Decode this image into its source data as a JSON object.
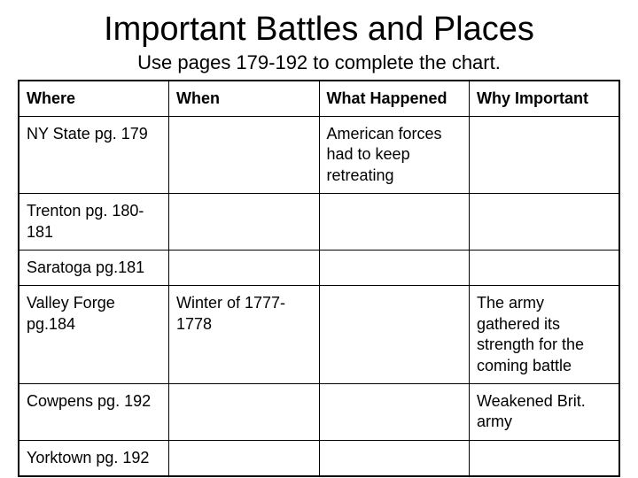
{
  "title": "Important Battles and Places",
  "subtitle": "Use pages 179-192 to complete the chart.",
  "table": {
    "columns": [
      "Where",
      "When",
      "What Happened",
      "Why Important"
    ],
    "rows": [
      [
        "NY State pg. 179",
        "",
        "American forces had to keep retreating",
        ""
      ],
      [
        "Trenton pg. 180-181",
        "",
        "",
        ""
      ],
      [
        "Saratoga pg.181",
        "",
        "",
        ""
      ],
      [
        "Valley Forge pg.184",
        "Winter of 1777-1778",
        "",
        "The army gathered its strength for the coming battle"
      ],
      [
        "Cowpens pg. 192",
        "",
        "",
        "Weakened Brit. army"
      ],
      [
        "Yorktown pg. 192",
        "",
        "",
        ""
      ]
    ],
    "border_color": "#000000",
    "background_color": "#ffffff",
    "header_font_weight": 700,
    "cell_fontsize": 18,
    "title_fontsize": 38,
    "subtitle_fontsize": 22
  }
}
